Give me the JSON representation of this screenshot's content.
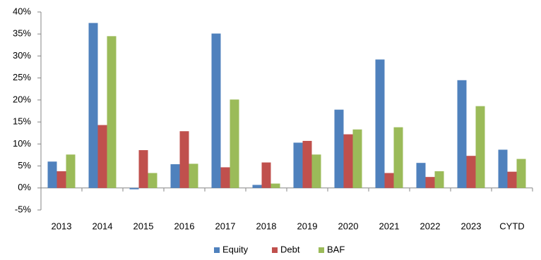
{
  "chart_data": {
    "type": "bar",
    "categories": [
      "2013",
      "2014",
      "2015",
      "2016",
      "2017",
      "2018",
      "2019",
      "2020",
      "2021",
      "2022",
      "2023",
      "CYTD"
    ],
    "series": [
      {
        "name": "Equity",
        "color": "#4f81bd",
        "values": [
          6.0,
          37.5,
          -0.3,
          5.4,
          35.1,
          0.7,
          10.3,
          17.8,
          29.2,
          5.7,
          24.5,
          8.7
        ]
      },
      {
        "name": "Debt",
        "color": "#c0504d",
        "values": [
          3.8,
          14.3,
          8.6,
          12.9,
          4.7,
          5.8,
          10.7,
          12.2,
          3.4,
          2.5,
          7.3,
          3.7
        ]
      },
      {
        "name": "BAF",
        "color": "#9bbb59",
        "values": [
          7.6,
          34.5,
          3.4,
          5.5,
          20.1,
          1.0,
          7.6,
          13.3,
          13.8,
          3.8,
          18.6,
          6.6
        ]
      }
    ],
    "ylim": [
      -5,
      40
    ],
    "yticks": [
      {
        "value": -5,
        "label": "-5%"
      },
      {
        "value": 0,
        "label": "0%"
      },
      {
        "value": 5,
        "label": "5%"
      },
      {
        "value": 10,
        "label": "10%"
      },
      {
        "value": 15,
        "label": "15%"
      },
      {
        "value": 20,
        "label": "20%"
      },
      {
        "value": 25,
        "label": "25%"
      },
      {
        "value": 30,
        "label": "30%"
      },
      {
        "value": 35,
        "label": "35%"
      },
      {
        "value": 40,
        "label": "40%"
      }
    ],
    "grid": false,
    "legend": "bottom"
  }
}
